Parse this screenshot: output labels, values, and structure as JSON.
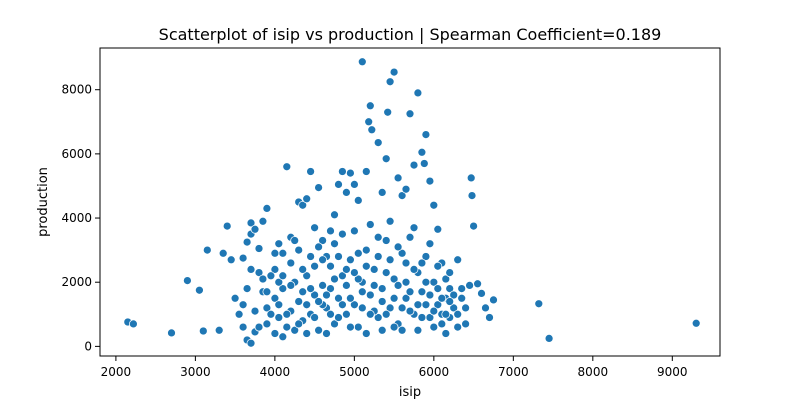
{
  "chart_data": {
    "type": "scatter",
    "title": "Scatterplot of isip vs production | Spearman Coefficient=0.189",
    "xlabel": "isip",
    "ylabel": "production",
    "xlim": [
      1800,
      9600
    ],
    "ylim": [
      -300,
      9300
    ],
    "xticks": [
      2000,
      3000,
      4000,
      5000,
      6000,
      7000,
      8000,
      9000
    ],
    "yticks": [
      0,
      2000,
      4000,
      6000,
      8000
    ],
    "grid": false,
    "legend": "none",
    "point_color": "#1f77b4",
    "points": [
      [
        2150,
        760
      ],
      [
        2220,
        700
      ],
      [
        2700,
        420
      ],
      [
        2900,
        2050
      ],
      [
        3050,
        1750
      ],
      [
        3150,
        3000
      ],
      [
        3100,
        480
      ],
      [
        3300,
        500
      ],
      [
        3350,
        2900
      ],
      [
        3400,
        3750
      ],
      [
        3450,
        2700
      ],
      [
        3500,
        1500
      ],
      [
        3600,
        2750
      ],
      [
        3650,
        3250
      ],
      [
        3700,
        3500
      ],
      [
        3700,
        3850
      ],
      [
        3750,
        3650
      ],
      [
        3800,
        3050
      ],
      [
        3850,
        3900
      ],
      [
        3900,
        4300
      ],
      [
        3600,
        600
      ],
      [
        3650,
        200
      ],
      [
        3700,
        100
      ],
      [
        3750,
        450
      ],
      [
        3800,
        2300
      ],
      [
        3850,
        1700
      ],
      [
        3900,
        1200
      ],
      [
        4000,
        2400
      ],
      [
        4050,
        3200
      ],
      [
        4100,
        2900
      ],
      [
        4150,
        5600
      ],
      [
        4200,
        3400
      ],
      [
        4300,
        4500
      ],
      [
        4350,
        4400
      ],
      [
        4400,
        4600
      ],
      [
        4450,
        5450
      ],
      [
        4500,
        3700
      ],
      [
        4550,
        4950
      ],
      [
        4600,
        3300
      ],
      [
        4650,
        2800
      ],
      [
        4700,
        3600
      ],
      [
        4750,
        4100
      ],
      [
        4800,
        5050
      ],
      [
        4850,
        5450
      ],
      [
        4900,
        4800
      ],
      [
        4950,
        5400
      ],
      [
        5000,
        5050
      ],
      [
        5050,
        4550
      ],
      [
        5100,
        8870
      ],
      [
        5150,
        5450
      ],
      [
        5180,
        7000
      ],
      [
        5200,
        7500
      ],
      [
        5220,
        6750
      ],
      [
        5300,
        6350
      ],
      [
        5350,
        4800
      ],
      [
        5400,
        5850
      ],
      [
        5420,
        7300
      ],
      [
        5450,
        8250
      ],
      [
        5500,
        8550
      ],
      [
        5550,
        5250
      ],
      [
        5600,
        4700
      ],
      [
        5650,
        4900
      ],
      [
        5700,
        7250
      ],
      [
        5750,
        5650
      ],
      [
        5800,
        7900
      ],
      [
        5850,
        6050
      ],
      [
        5880,
        5700
      ],
      [
        5900,
        6600
      ],
      [
        5950,
        5150
      ],
      [
        6000,
        4400
      ],
      [
        6050,
        3650
      ],
      [
        6100,
        2600
      ],
      [
        6150,
        2100
      ],
      [
        6200,
        1800
      ],
      [
        6250,
        1600
      ],
      [
        6300,
        2700
      ],
      [
        6350,
        1500
      ],
      [
        6400,
        1200
      ],
      [
        6450,
        1900
      ],
      [
        6470,
        5250
      ],
      [
        6480,
        4700
      ],
      [
        6500,
        3750
      ],
      [
        6550,
        1950
      ],
      [
        6600,
        1650
      ],
      [
        6650,
        1200
      ],
      [
        6700,
        900
      ],
      [
        6750,
        1450
      ],
      [
        7320,
        1330
      ],
      [
        7450,
        250
      ],
      [
        9300,
        720
      ],
      [
        4000,
        1500
      ],
      [
        4050,
        900
      ],
      [
        4100,
        1800
      ],
      [
        4150,
        600
      ],
      [
        4200,
        1100
      ],
      [
        4250,
        2000
      ],
      [
        4300,
        1400
      ],
      [
        4350,
        800
      ],
      [
        4400,
        2200
      ],
      [
        4450,
        1000
      ],
      [
        4500,
        1600
      ],
      [
        4550,
        500
      ],
      [
        4600,
        1900
      ],
      [
        4650,
        1200
      ],
      [
        4700,
        2500
      ],
      [
        4750,
        700
      ],
      [
        4800,
        1500
      ],
      [
        4850,
        2200
      ],
      [
        4900,
        1000
      ],
      [
        4950,
        2700
      ],
      [
        5000,
        1300
      ],
      [
        5050,
        600
      ],
      [
        5100,
        2000
      ],
      [
        5150,
        3000
      ],
      [
        5200,
        1600
      ],
      [
        5250,
        2400
      ],
      [
        5300,
        900
      ],
      [
        5350,
        1800
      ],
      [
        5400,
        3300
      ],
      [
        5450,
        1200
      ],
      [
        5500,
        2100
      ],
      [
        5550,
        700
      ],
      [
        5600,
        2900
      ],
      [
        5650,
        1500
      ],
      [
        5700,
        3400
      ],
      [
        5750,
        1000
      ],
      [
        5800,
        2300
      ],
      [
        5850,
        1700
      ],
      [
        5900,
        2800
      ],
      [
        5950,
        900
      ],
      [
        6000,
        2000
      ],
      [
        6050,
        1300
      ],
      [
        6100,
        700
      ],
      [
        6150,
        1500
      ],
      [
        6200,
        900
      ],
      [
        6250,
        1200
      ],
      [
        6300,
        600
      ],
      [
        6350,
        1800
      ],
      [
        3900,
        700
      ],
      [
        3950,
        1000
      ],
      [
        4000,
        400
      ],
      [
        4050,
        2000
      ],
      [
        4100,
        300
      ],
      [
        4200,
        2600
      ],
      [
        4250,
        500
      ],
      [
        4300,
        3000
      ],
      [
        4350,
        1700
      ],
      [
        4400,
        400
      ],
      [
        4450,
        2800
      ],
      [
        4500,
        900
      ],
      [
        4550,
        3100
      ],
      [
        4600,
        1300
      ],
      [
        4650,
        400
      ],
      [
        4700,
        1800
      ],
      [
        4750,
        3200
      ],
      [
        4800,
        900
      ],
      [
        4850,
        3500
      ],
      [
        4900,
        2400
      ],
      [
        4950,
        600
      ],
      [
        5000,
        3600
      ],
      [
        5050,
        2100
      ],
      [
        5100,
        1200
      ],
      [
        5150,
        400
      ],
      [
        5200,
        3800
      ],
      [
        5250,
        1100
      ],
      [
        5300,
        2800
      ],
      [
        5350,
        500
      ],
      [
        5400,
        2300
      ],
      [
        5450,
        3900
      ],
      [
        5500,
        1500
      ],
      [
        5550,
        3100
      ],
      [
        5600,
        500
      ],
      [
        5650,
        2000
      ],
      [
        5700,
        1100
      ],
      [
        5750,
        3700
      ],
      [
        5800,
        500
      ],
      [
        5850,
        2600
      ],
      [
        5900,
        1300
      ],
      [
        5950,
        3200
      ],
      [
        6000,
        600
      ],
      [
        6050,
        2500
      ],
      [
        6100,
        1000
      ],
      [
        6150,
        400
      ],
      [
        6200,
        2300
      ],
      [
        6300,
        1000
      ],
      [
        6400,
        700
      ],
      [
        3550,
        1000
      ],
      [
        3600,
        1300
      ],
      [
        3650,
        1800
      ],
      [
        3700,
        2400
      ],
      [
        3750,
        1100
      ],
      [
        3800,
        600
      ],
      [
        3850,
        2100
      ],
      [
        3900,
        1700
      ],
      [
        3950,
        2200
      ],
      [
        4000,
        2900
      ],
      [
        4050,
        1300
      ],
      [
        4100,
        2200
      ],
      [
        4150,
        1000
      ],
      [
        4200,
        1900
      ],
      [
        4250,
        3300
      ],
      [
        4300,
        700
      ],
      [
        4350,
        2400
      ],
      [
        4400,
        1300
      ],
      [
        4450,
        1800
      ],
      [
        4500,
        2500
      ],
      [
        4550,
        1400
      ],
      [
        4600,
        2700
      ],
      [
        4650,
        1600
      ],
      [
        4700,
        1000
      ],
      [
        4750,
        2100
      ],
      [
        4800,
        2800
      ],
      [
        4850,
        1300
      ],
      [
        4900,
        1900
      ],
      [
        4950,
        1500
      ],
      [
        5000,
        2300
      ],
      [
        5050,
        2900
      ],
      [
        5100,
        1700
      ],
      [
        5150,
        2500
      ],
      [
        5200,
        1000
      ],
      [
        5250,
        1900
      ],
      [
        5300,
        3400
      ],
      [
        5350,
        1400
      ],
      [
        5400,
        1000
      ],
      [
        5450,
        2700
      ],
      [
        5500,
        600
      ],
      [
        5550,
        1900
      ],
      [
        5600,
        1200
      ],
      [
        5650,
        2600
      ],
      [
        5700,
        1700
      ],
      [
        5750,
        2400
      ],
      [
        5800,
        1300
      ],
      [
        5850,
        900
      ],
      [
        5900,
        2000
      ],
      [
        5950,
        1600
      ],
      [
        6000,
        1100
      ],
      [
        6050,
        1800
      ],
      [
        6100,
        1500
      ],
      [
        6150,
        1000
      ],
      [
        6200,
        1400
      ]
    ]
  }
}
